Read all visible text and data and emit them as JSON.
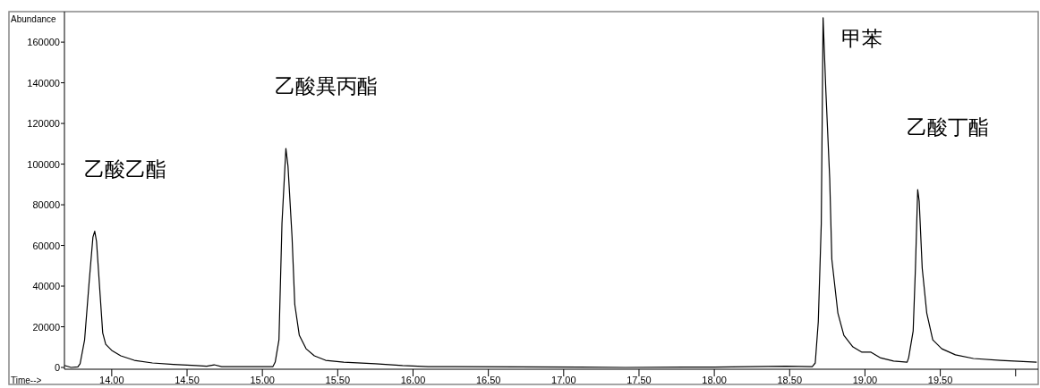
{
  "chart_data": {
    "type": "line",
    "xlabel": "Time-->",
    "ylabel": "Abundance",
    "x": [
      13.686,
      13.73,
      13.775,
      13.79,
      13.82,
      13.85,
      13.875,
      13.887,
      13.899,
      13.923,
      13.94,
      13.96,
      14.0,
      14.06,
      14.15,
      14.27,
      14.41,
      14.56,
      14.63,
      14.68,
      14.73,
      15.07,
      15.085,
      15.11,
      15.13,
      15.156,
      15.17,
      15.197,
      15.215,
      15.245,
      15.29,
      15.345,
      15.42,
      15.54,
      15.75,
      15.93,
      16.1,
      17.11,
      17.41,
      18.0,
      18.475,
      18.65,
      18.67,
      18.69,
      18.71,
      18.722,
      18.74,
      18.766,
      18.78,
      18.82,
      18.86,
      18.92,
      18.98,
      19.04,
      19.1,
      19.19,
      19.28,
      19.29,
      19.32,
      19.335,
      19.35,
      19.36,
      19.38,
      19.41,
      19.45,
      19.51,
      19.6,
      19.72,
      19.9,
      20.14
    ],
    "series": [
      {
        "color": "#000000",
        "values": [
          1000,
          0,
          300,
          1800,
          13600,
          42000,
          64000,
          67000,
          62000,
          35600,
          17000,
          11400,
          8400,
          5700,
          3500,
          2200,
          1500,
          900,
          600,
          1300,
          400,
          400,
          2600,
          13600,
          70800,
          107700,
          99000,
          64000,
          31000,
          15800,
          9200,
          5700,
          3500,
          2600,
          1800,
          900,
          400,
          200,
          0,
          200,
          600,
          400,
          2200,
          22400,
          70800,
          172000,
          136700,
          92800,
          53200,
          26800,
          15800,
          10100,
          7500,
          7500,
          4800,
          3100,
          2600,
          4800,
          18000,
          48800,
          87500,
          81800,
          48800,
          26800,
          13600,
          9200,
          6200,
          4400,
          3500,
          2600
        ]
      }
    ],
    "xlim": [
      13.686,
      20.15
    ],
    "ylim": [
      0,
      175000
    ],
    "xticks": [
      {
        "value": 14,
        "label": "14.00"
      },
      {
        "value": 14.5,
        "label": "14.50"
      },
      {
        "value": 15,
        "label": "15.00"
      },
      {
        "value": 15.5,
        "label": "15.50"
      },
      {
        "value": 16,
        "label": "16.00"
      },
      {
        "value": 16.5,
        "label": "16.50"
      },
      {
        "value": 17,
        "label": "17.00"
      },
      {
        "value": 17.5,
        "label": "17.50"
      },
      {
        "value": 18,
        "label": "18.00"
      },
      {
        "value": 18.5,
        "label": "18.50"
      },
      {
        "value": 19,
        "label": "19.00"
      },
      {
        "value": 19.5,
        "label": "19.50"
      },
      {
        "value": 20,
        "label": null
      }
    ],
    "yticks": [
      0,
      20000,
      40000,
      60000,
      80000,
      100000,
      120000,
      140000,
      160000
    ],
    "annotations": [
      {
        "text": "乙酸乙酯",
        "x": 13.887,
        "y": 67000
      },
      {
        "text": "乙酸異丙酯",
        "x": 15.156,
        "y": 107700
      },
      {
        "text": "甲苯",
        "x": 18.722,
        "y": 172000
      },
      {
        "text": "乙酸丁酯",
        "x": 19.35,
        "y": 87500
      }
    ],
    "grid": false,
    "marker": "none",
    "line_style": "solid"
  }
}
